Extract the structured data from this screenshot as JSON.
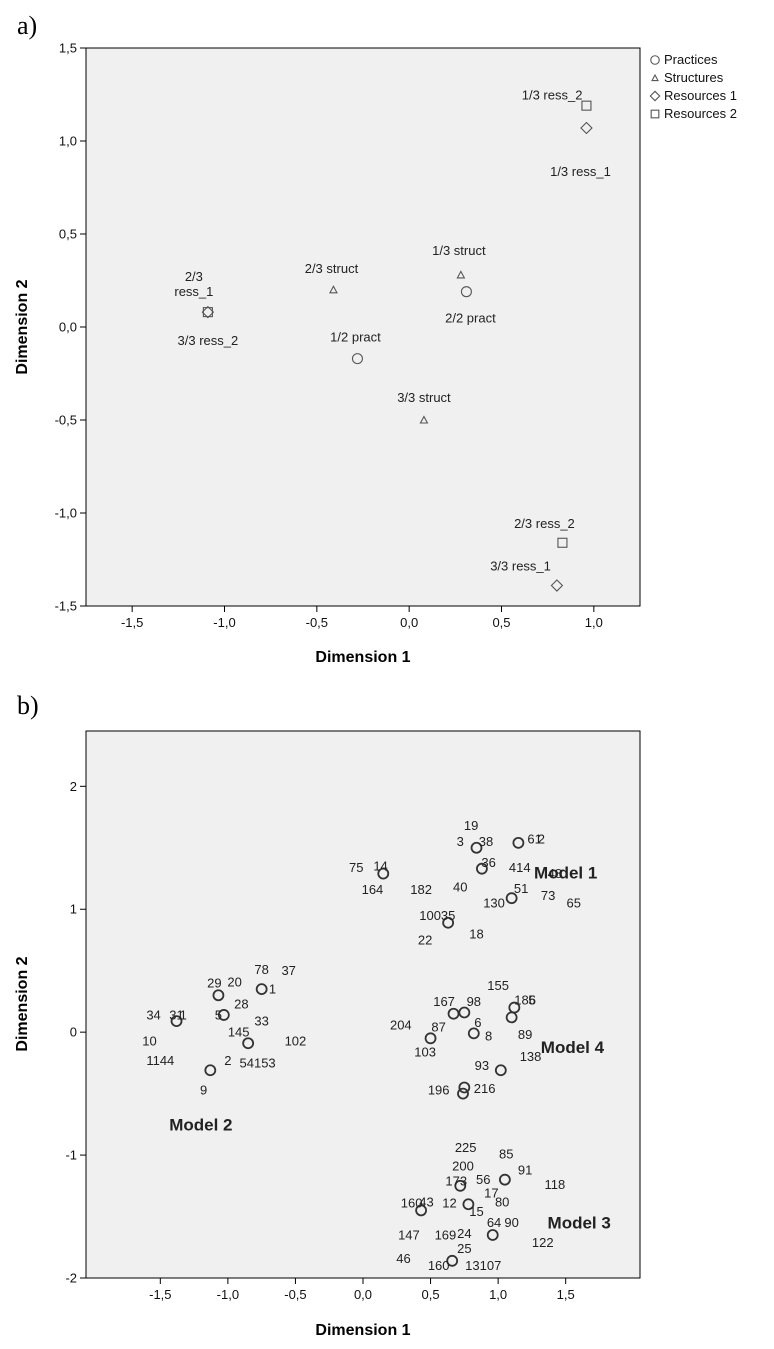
{
  "chart_data": [
    {
      "panel": "a)",
      "type": "scatter",
      "xlabel": "Dimension 1",
      "ylabel": "Dimension 2",
      "xlim": [
        -1.75,
        1.25
      ],
      "ylim": [
        -1.5,
        1.5
      ],
      "x_ticks": [
        "-1,5",
        "-1,0",
        "-0,5",
        "0,0",
        "0,5",
        "1,0"
      ],
      "x_tick_values": [
        -1.5,
        -1.0,
        -0.5,
        0.0,
        0.5,
        1.0
      ],
      "y_ticks": [
        "1,5",
        "1,0",
        "0,5",
        "0,0",
        "-0,5",
        "-1,0",
        "-1,5"
      ],
      "y_tick_values": [
        1.5,
        1.0,
        0.5,
        0.0,
        -0.5,
        -1.0,
        -1.5
      ],
      "legend_position": "top-right (outside)",
      "legend": [
        {
          "name": "Practices",
          "marker": "circle"
        },
        {
          "name": "Structures",
          "marker": "triangle"
        },
        {
          "name": "Resources 1",
          "marker": "diamond"
        },
        {
          "name": "Resources 2",
          "marker": "square"
        }
      ],
      "points": [
        {
          "series": "Resources 2",
          "marker": "square",
          "x": 0.96,
          "y": 1.19,
          "label": "1/3 ress_2"
        },
        {
          "series": "Resources 1",
          "marker": "diamond",
          "x": 0.96,
          "y": 1.07,
          "label": "1/3 ress_1"
        },
        {
          "series": "Structures",
          "marker": "triangle",
          "x": 0.28,
          "y": 0.28,
          "label": "1/3 struct"
        },
        {
          "series": "Practices",
          "marker": "circle",
          "x": 0.31,
          "y": 0.19,
          "label": "2/2 pract"
        },
        {
          "series": "Structures",
          "marker": "triangle",
          "x": -0.41,
          "y": 0.2,
          "label": "2/3 struct"
        },
        {
          "series": "Resources 1",
          "marker": "diamond",
          "x": -1.09,
          "y": 0.08,
          "label": "2/3 ress_1"
        },
        {
          "series": "Resources 2",
          "marker": "square",
          "x": -1.09,
          "y": 0.08,
          "label": "3/3 ress_2"
        },
        {
          "series": "Practices",
          "marker": "circle",
          "x": -0.28,
          "y": -0.17,
          "label": "1/2 pract"
        },
        {
          "series": "Structures",
          "marker": "triangle",
          "x": 0.08,
          "y": -0.5,
          "label": "3/3 struct"
        },
        {
          "series": "Resources 2",
          "marker": "square",
          "x": 0.83,
          "y": -1.16,
          "label": "2/3 ress_2"
        },
        {
          "series": "Resources 1",
          "marker": "diamond",
          "x": 0.8,
          "y": -1.39,
          "label": "3/3 ress_1"
        }
      ]
    },
    {
      "panel": "b)",
      "type": "scatter",
      "xlabel": "Dimension 1",
      "ylabel": "Dimension 2",
      "xlim": [
        -2.05,
        2.05
      ],
      "ylim": [
        -2.0,
        2.45
      ],
      "x_ticks": [
        "-1,5",
        "-1,0",
        "-0,5",
        "0,0",
        "0,5",
        "1,0",
        "1,5"
      ],
      "x_tick_values": [
        -1.5,
        -1.0,
        -0.5,
        0.0,
        0.5,
        1.0,
        1.5
      ],
      "y_ticks": [
        "2",
        "1",
        "0",
        "-1",
        "-2"
      ],
      "y_tick_values": [
        2,
        1,
        0,
        -1,
        -2
      ],
      "groups": [
        {
          "name": "Model 1",
          "x": 1.5,
          "y": 1.3
        },
        {
          "name": "Model 2",
          "x": -1.2,
          "y": -0.75
        },
        {
          "name": "Model 3",
          "x": 1.6,
          "y": -1.55
        },
        {
          "name": "Model 4",
          "x": 1.55,
          "y": -0.12
        }
      ],
      "points": [
        {
          "x": 0.84,
          "y": 1.5
        },
        {
          "x": 1.15,
          "y": 1.54
        },
        {
          "x": 0.88,
          "y": 1.33
        },
        {
          "x": 0.15,
          "y": 1.29
        },
        {
          "x": 1.1,
          "y": 1.09
        },
        {
          "x": 0.63,
          "y": 0.89
        },
        {
          "x": -0.75,
          "y": 0.35
        },
        {
          "x": -1.07,
          "y": 0.3
        },
        {
          "x": -1.38,
          "y": 0.09
        },
        {
          "x": -1.03,
          "y": 0.14
        },
        {
          "x": -0.85,
          "y": -0.09
        },
        {
          "x": -1.13,
          "y": -0.31
        },
        {
          "x": 1.12,
          "y": 0.2
        },
        {
          "x": 0.67,
          "y": 0.15
        },
        {
          "x": 0.75,
          "y": 0.16
        },
        {
          "x": 1.1,
          "y": 0.12
        },
        {
          "x": 0.5,
          "y": -0.05
        },
        {
          "x": 0.82,
          "y": -0.01
        },
        {
          "x": 1.02,
          "y": -0.31
        },
        {
          "x": 0.75,
          "y": -0.45
        },
        {
          "x": 0.74,
          "y": -0.5
        },
        {
          "x": 1.05,
          "y": -1.2
        },
        {
          "x": 0.72,
          "y": -1.25
        },
        {
          "x": 0.43,
          "y": -1.45
        },
        {
          "x": 0.78,
          "y": -1.4
        },
        {
          "x": 0.96,
          "y": -1.65
        },
        {
          "x": 0.66,
          "y": -1.86
        }
      ],
      "labels": [
        {
          "text": "19",
          "x": 0.8,
          "y": 1.68
        },
        {
          "text": "3",
          "x": 0.72,
          "y": 1.55
        },
        {
          "text": "38",
          "x": 0.91,
          "y": 1.55
        },
        {
          "text": "61",
          "x": 1.27,
          "y": 1.57
        },
        {
          "text": "2",
          "x": 1.32,
          "y": 1.57
        },
        {
          "text": "36",
          "x": 0.93,
          "y": 1.38
        },
        {
          "text": "414",
          "x": 1.16,
          "y": 1.34
        },
        {
          "text": "48",
          "x": 1.42,
          "y": 1.29
        },
        {
          "text": "75",
          "x": -0.05,
          "y": 1.34
        },
        {
          "text": "14",
          "x": 0.13,
          "y": 1.35
        },
        {
          "text": "164",
          "x": 0.07,
          "y": 1.16
        },
        {
          "text": "182",
          "x": 0.43,
          "y": 1.16
        },
        {
          "text": "40",
          "x": 0.72,
          "y": 1.18
        },
        {
          "text": "51",
          "x": 1.17,
          "y": 1.17
        },
        {
          "text": "73",
          "x": 1.37,
          "y": 1.11
        },
        {
          "text": "65",
          "x": 1.56,
          "y": 1.05
        },
        {
          "text": "130",
          "x": 0.97,
          "y": 1.05
        },
        {
          "text": "10035",
          "x": 0.55,
          "y": 0.95
        },
        {
          "text": "22",
          "x": 0.46,
          "y": 0.75
        },
        {
          "text": "18",
          "x": 0.84,
          "y": 0.8
        },
        {
          "text": "78",
          "x": -0.75,
          "y": 0.51
        },
        {
          "text": "37",
          "x": -0.55,
          "y": 0.5
        },
        {
          "text": "29",
          "x": -1.1,
          "y": 0.4
        },
        {
          "text": "20",
          "x": -0.95,
          "y": 0.41
        },
        {
          "text": "1",
          "x": -0.67,
          "y": 0.35
        },
        {
          "text": "34",
          "x": -1.55,
          "y": 0.14
        },
        {
          "text": "31",
          "x": -1.38,
          "y": 0.14
        },
        {
          "text": "1",
          "x": -1.33,
          "y": 0.14
        },
        {
          "text": "28",
          "x": -0.9,
          "y": 0.23
        },
        {
          "text": "5",
          "x": -1.07,
          "y": 0.14
        },
        {
          "text": "33",
          "x": -0.75,
          "y": 0.09
        },
        {
          "text": "10",
          "x": -1.58,
          "y": -0.07
        },
        {
          "text": "145",
          "x": -0.92,
          "y": 0.0
        },
        {
          "text": "102",
          "x": -0.5,
          "y": -0.07
        },
        {
          "text": "1144",
          "x": -1.5,
          "y": -0.23
        },
        {
          "text": "2",
          "x": -1.0,
          "y": -0.23
        },
        {
          "text": "54153",
          "x": -0.78,
          "y": -0.25
        },
        {
          "text": "9",
          "x": -1.18,
          "y": -0.47
        },
        {
          "text": "155",
          "x": 1.0,
          "y": 0.38
        },
        {
          "text": "186",
          "x": 1.2,
          "y": 0.26
        },
        {
          "text": "5",
          "x": 1.25,
          "y": 0.26
        },
        {
          "text": "167",
          "x": 0.6,
          "y": 0.25
        },
        {
          "text": "98",
          "x": 0.82,
          "y": 0.25
        },
        {
          "text": "204",
          "x": 0.28,
          "y": 0.06
        },
        {
          "text": "87",
          "x": 0.56,
          "y": 0.04
        },
        {
          "text": "6",
          "x": 0.85,
          "y": 0.08
        },
        {
          "text": "8",
          "x": 0.93,
          "y": -0.03
        },
        {
          "text": "89",
          "x": 1.2,
          "y": -0.02
        },
        {
          "text": "103",
          "x": 0.46,
          "y": -0.16
        },
        {
          "text": "138",
          "x": 1.24,
          "y": -0.2
        },
        {
          "text": "93",
          "x": 0.88,
          "y": -0.27
        },
        {
          "text": "196",
          "x": 0.56,
          "y": -0.47
        },
        {
          "text": "216",
          "x": 0.9,
          "y": -0.46
        },
        {
          "text": "225",
          "x": 0.76,
          "y": -0.94
        },
        {
          "text": "85",
          "x": 1.06,
          "y": -0.99
        },
        {
          "text": "200",
          "x": 0.74,
          "y": -1.09
        },
        {
          "text": "91",
          "x": 1.2,
          "y": -1.12
        },
        {
          "text": "173",
          "x": 0.69,
          "y": -1.21
        },
        {
          "text": "56",
          "x": 0.89,
          "y": -1.2
        },
        {
          "text": "118",
          "x": 1.42,
          "y": -1.24
        },
        {
          "text": "17",
          "x": 0.95,
          "y": -1.31
        },
        {
          "text": "160",
          "x": 0.36,
          "y": -1.39
        },
        {
          "text": "43",
          "x": 0.47,
          "y": -1.38
        },
        {
          "text": "12",
          "x": 0.64,
          "y": -1.39
        },
        {
          "text": "80",
          "x": 1.03,
          "y": -1.38
        },
        {
          "text": "15",
          "x": 0.84,
          "y": -1.46
        },
        {
          "text": "64",
          "x": 0.97,
          "y": -1.55
        },
        {
          "text": "90",
          "x": 1.1,
          "y": -1.55
        },
        {
          "text": "147",
          "x": 0.34,
          "y": -1.65
        },
        {
          "text": "169",
          "x": 0.61,
          "y": -1.65
        },
        {
          "text": "24",
          "x": 0.75,
          "y": -1.64
        },
        {
          "text": "122",
          "x": 1.33,
          "y": -1.71
        },
        {
          "text": "25",
          "x": 0.75,
          "y": -1.76
        },
        {
          "text": "46",
          "x": 0.3,
          "y": -1.84
        },
        {
          "text": "160",
          "x": 0.56,
          "y": -1.9
        },
        {
          "text": "13107",
          "x": 0.89,
          "y": -1.9
        }
      ]
    }
  ]
}
